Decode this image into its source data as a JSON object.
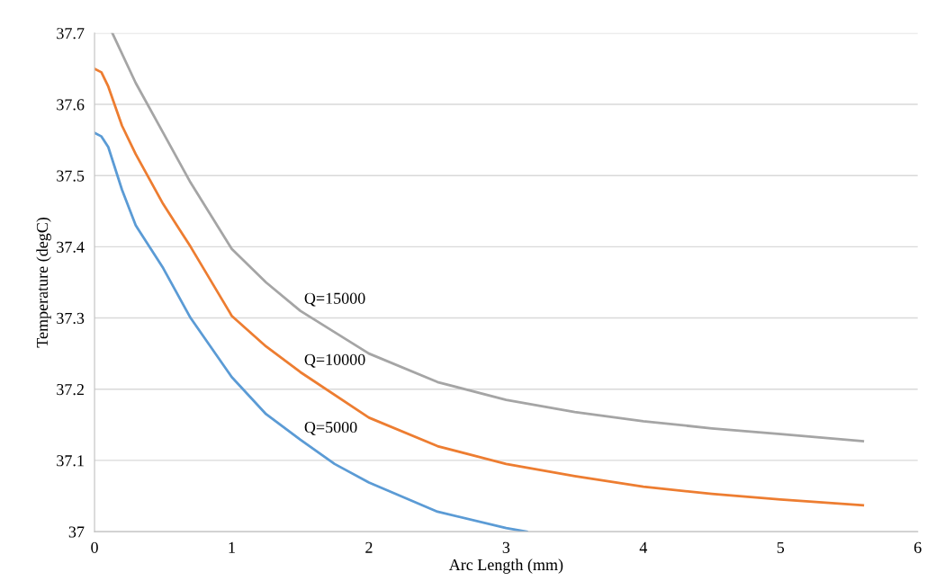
{
  "chart_data": {
    "type": "line",
    "xlabel": "Arc Length (mm)",
    "ylabel": "Temperature (degC)",
    "xlim": [
      0,
      6
    ],
    "xticks": [
      0,
      1,
      2,
      3,
      4,
      5,
      6
    ],
    "ylim": [
      37,
      37.7
    ],
    "yticks": [
      {
        "value": 37,
        "label": "37"
      },
      37.1,
      37.2,
      37.3,
      37.4,
      37.5,
      37.6,
      37.7
    ],
    "grid": "y",
    "marker": "none",
    "line_style": "solid",
    "series": [
      {
        "name": "Q=5000",
        "color": "#5b9bd5",
        "x": [
          0,
          0.05,
          0.1,
          0.2,
          0.3,
          0.5,
          0.7,
          1,
          1.25,
          1.5,
          1.75,
          2,
          2.5,
          3,
          3.15
        ],
        "values": [
          37.56,
          37.555,
          37.54,
          37.48,
          37.43,
          37.37,
          37.3,
          37.217,
          37.165,
          37.129,
          37.095,
          37.069,
          37.028,
          37.005,
          37.0
        ]
      },
      {
        "name": "Q=10000",
        "color": "#ed7d31",
        "x": [
          0,
          0.05,
          0.1,
          0.2,
          0.3,
          0.5,
          0.7,
          1,
          1.25,
          1.5,
          2,
          2.5,
          3,
          3.5,
          4,
          4.5,
          5,
          5.6
        ],
        "values": [
          37.65,
          37.645,
          37.625,
          37.57,
          37.53,
          37.46,
          37.4,
          37.303,
          37.26,
          37.224,
          37.16,
          37.12,
          37.095,
          37.078,
          37.063,
          37.053,
          37.045,
          37.037
        ]
      },
      {
        "name": "Q=15000",
        "color": "#a5a5a5",
        "x": [
          0.13,
          0.3,
          0.5,
          0.7,
          1,
          1.25,
          1.5,
          2,
          2.5,
          3,
          3.5,
          4,
          4.5,
          5,
          5.6
        ],
        "values": [
          37.7,
          37.63,
          37.56,
          37.49,
          37.397,
          37.35,
          37.31,
          37.25,
          37.21,
          37.185,
          37.168,
          37.155,
          37.145,
          37.137,
          37.127
        ]
      }
    ]
  }
}
